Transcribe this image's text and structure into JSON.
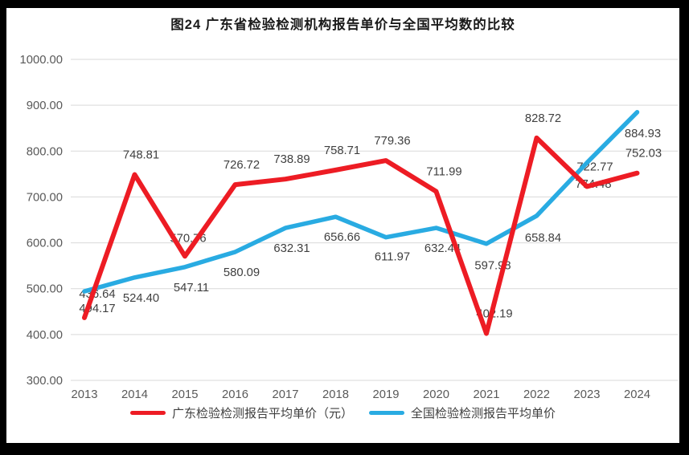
{
  "title": "图24  广东省检验检测机构报告单价与全国平均数的比较",
  "chart_data": {
    "type": "line",
    "categories": [
      "2013",
      "2014",
      "2015",
      "2016",
      "2017",
      "2018",
      "2019",
      "2020",
      "2021",
      "2022",
      "2023",
      "2024"
    ],
    "series": [
      {
        "name": "广东检验检测报告平均单价（元）",
        "color": "#ED1C24",
        "values": [
          436.64,
          748.81,
          570.76,
          726.72,
          738.89,
          758.71,
          779.36,
          711.99,
          402.19,
          828.72,
          722.77,
          752.03
        ],
        "label_side": "above",
        "label_dx": [
          16,
          8,
          4,
          8,
          8,
          8,
          8,
          10,
          10,
          8,
          10,
          8
        ],
        "label_dy": [
          -25,
          -20,
          -18,
          -20,
          -20,
          -20,
          -20,
          -20,
          -20,
          -20,
          -20,
          -20
        ]
      },
      {
        "name": "全国检验检测报告平均单价",
        "color": "#29ABE2",
        "values": [
          494.17,
          524.4,
          547.11,
          580.09,
          632.31,
          656.66,
          611.97,
          632.44,
          597.98,
          658.84,
          774.48,
          884.93
        ],
        "label_side": "below",
        "label_dx": [
          16,
          8,
          8,
          8,
          8,
          8,
          8,
          8,
          8,
          8,
          8,
          7
        ],
        "label_dy": [
          26,
          30,
          30,
          30,
          30,
          30,
          29,
          30,
          32,
          32,
          31,
          31
        ]
      }
    ],
    "title": "图24  广东省检验检测机构报告单价与全国平均数的比较",
    "xlabel": "",
    "ylabel": "",
    "ylim": [
      300,
      1000
    ],
    "ytick_step": 100,
    "ytick_labels": [
      "300.00",
      "400.00",
      "500.00",
      "600.00",
      "700.00",
      "800.00",
      "900.00",
      "1000.00"
    ],
    "grid": true,
    "gridline_color": "#D9D9D9",
    "legend_position": "bottom",
    "value_label_decimals": 2
  },
  "legend": {
    "items": [
      {
        "label": "广东检验检测报告平均单价（元）",
        "color": "#ED1C24"
      },
      {
        "label": "全国检验检测报告平均单价",
        "color": "#29ABE2"
      }
    ]
  }
}
